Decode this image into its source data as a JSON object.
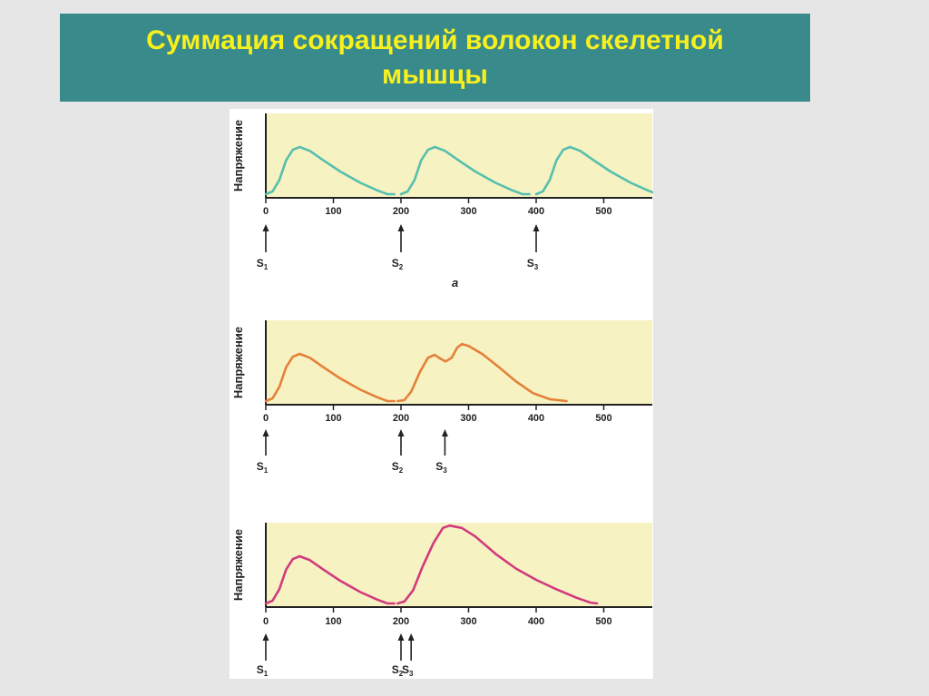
{
  "title": {
    "line1": "Суммация сокращений волокон скелетной",
    "line2": "мышцы"
  },
  "colors": {
    "title_bg": "#388a8b",
    "title_text": "#f7f01e",
    "plot_bg": "#f6f2c2",
    "panel_a": "#56bfae",
    "panel_b": "#e5803a",
    "panel_c": "#d23a7d"
  },
  "chart_data": [
    {
      "type": "line",
      "ylabel": "Напряжение",
      "xlim": [
        0,
        580
      ],
      "x_ticks": [
        "0",
        "100",
        "200",
        "300",
        "400",
        "500"
      ],
      "x_tick_values": [
        0,
        100,
        200,
        300,
        400,
        500
      ],
      "panel_label": "а",
      "stimuli": [
        {
          "label": "S",
          "sub": "1",
          "x": 0
        },
        {
          "label": "S",
          "sub": "2",
          "x": 200
        },
        {
          "label": "S",
          "sub": "3",
          "x": 400
        }
      ],
      "series": [
        {
          "color": "#56bfae",
          "points": [
            [
              0,
              0
            ],
            [
              10,
              0.06
            ],
            [
              20,
              0.3
            ],
            [
              30,
              0.72
            ],
            [
              40,
              0.94
            ],
            [
              50,
              1.0
            ],
            [
              65,
              0.92
            ],
            [
              85,
              0.72
            ],
            [
              110,
              0.48
            ],
            [
              140,
              0.24
            ],
            [
              165,
              0.08
            ],
            [
              180,
              0
            ],
            [
              190,
              0
            ]
          ]
        },
        {
          "color": "#56bfae",
          "points": [
            [
              200,
              0
            ],
            [
              210,
              0.06
            ],
            [
              220,
              0.3
            ],
            [
              230,
              0.72
            ],
            [
              240,
              0.94
            ],
            [
              250,
              1.0
            ],
            [
              265,
              0.92
            ],
            [
              285,
              0.72
            ],
            [
              310,
              0.48
            ],
            [
              340,
              0.24
            ],
            [
              365,
              0.08
            ],
            [
              380,
              0
            ],
            [
              390,
              0
            ]
          ]
        },
        {
          "color": "#56bfae",
          "points": [
            [
              400,
              0
            ],
            [
              410,
              0.06
            ],
            [
              420,
              0.3
            ],
            [
              430,
              0.72
            ],
            [
              440,
              0.94
            ],
            [
              450,
              1.0
            ],
            [
              465,
              0.92
            ],
            [
              485,
              0.72
            ],
            [
              510,
              0.48
            ],
            [
              540,
              0.24
            ],
            [
              565,
              0.08
            ],
            [
              580,
              0
            ]
          ]
        }
      ]
    },
    {
      "type": "line",
      "ylabel": "Напряжение",
      "xlim": [
        0,
        580
      ],
      "x_ticks": [
        "0",
        "100",
        "200",
        "300",
        "400",
        "500"
      ],
      "x_tick_values": [
        0,
        100,
        200,
        300,
        400,
        500
      ],
      "panel_label": "",
      "stimuli": [
        {
          "label": "S",
          "sub": "1",
          "x": 0
        },
        {
          "label": "S",
          "sub": "2",
          "x": 200
        },
        {
          "label": "S",
          "sub": "3",
          "x": 265
        }
      ],
      "series": [
        {
          "color": "#e5803a",
          "points": [
            [
              0,
              0
            ],
            [
              10,
              0.06
            ],
            [
              20,
              0.3
            ],
            [
              30,
              0.72
            ],
            [
              40,
              0.94
            ],
            [
              50,
              1.0
            ],
            [
              65,
              0.92
            ],
            [
              85,
              0.72
            ],
            [
              110,
              0.48
            ],
            [
              140,
              0.24
            ],
            [
              165,
              0.08
            ],
            [
              180,
              0
            ],
            [
              190,
              0
            ]
          ]
        },
        {
          "color": "#e5803a",
          "points": [
            [
              195,
              0
            ],
            [
              205,
              0.02
            ],
            [
              215,
              0.2
            ],
            [
              228,
              0.62
            ],
            [
              240,
              0.92
            ],
            [
              250,
              0.98
            ],
            [
              258,
              0.9
            ],
            [
              266,
              0.84
            ],
            [
              275,
              0.92
            ],
            [
              283,
              1.13
            ],
            [
              290,
              1.21
            ],
            [
              300,
              1.17
            ],
            [
              320,
              1.0
            ],
            [
              345,
              0.72
            ],
            [
              370,
              0.42
            ],
            [
              395,
              0.17
            ],
            [
              420,
              0.04
            ],
            [
              445,
              0
            ]
          ]
        }
      ]
    },
    {
      "type": "line",
      "ylabel": "Напряжение",
      "xlim": [
        0,
        580
      ],
      "x_ticks": [
        "0",
        "100",
        "200",
        "300",
        "400",
        "500"
      ],
      "x_tick_values": [
        0,
        100,
        200,
        300,
        400,
        500
      ],
      "panel_label": "",
      "stimuli": [
        {
          "label": "S",
          "sub": "2",
          "x": 200
        },
        {
          "label": "S",
          "sub": "1",
          "x": 0
        },
        {
          "label": "S",
          "sub": "3",
          "x": 215
        }
      ],
      "series": [
        {
          "color": "#d23a7d",
          "points": [
            [
              0,
              0
            ],
            [
              10,
              0.06
            ],
            [
              20,
              0.3
            ],
            [
              30,
              0.72
            ],
            [
              40,
              0.94
            ],
            [
              50,
              1.0
            ],
            [
              65,
              0.92
            ],
            [
              85,
              0.72
            ],
            [
              110,
              0.48
            ],
            [
              140,
              0.24
            ],
            [
              165,
              0.08
            ],
            [
              180,
              0
            ],
            [
              190,
              0
            ]
          ]
        },
        {
          "color": "#d23a7d",
          "points": [
            [
              195,
              0
            ],
            [
              205,
              0.04
            ],
            [
              218,
              0.28
            ],
            [
              232,
              0.78
            ],
            [
              248,
              1.28
            ],
            [
              262,
              1.6
            ],
            [
              272,
              1.65
            ],
            [
              290,
              1.6
            ],
            [
              310,
              1.42
            ],
            [
              340,
              1.05
            ],
            [
              370,
              0.74
            ],
            [
              400,
              0.5
            ],
            [
              430,
              0.3
            ],
            [
              460,
              0.12
            ],
            [
              480,
              0.02
            ],
            [
              490,
              0
            ]
          ]
        }
      ]
    }
  ]
}
